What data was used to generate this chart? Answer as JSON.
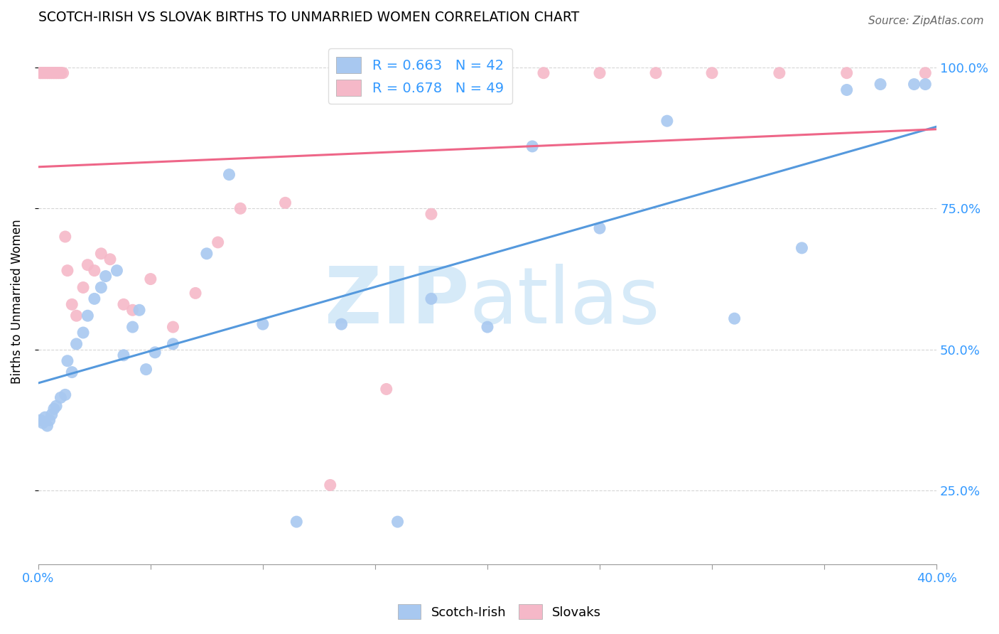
{
  "title": "SCOTCH-IRISH VS SLOVAK BIRTHS TO UNMARRIED WOMEN CORRELATION CHART",
  "source": "Source: ZipAtlas.com",
  "ylabel": "Births to Unmarried Women",
  "legend_blue": "R = 0.663   N = 42",
  "legend_pink": "R = 0.678   N = 49",
  "scotch_irish_color": "#a8c8f0",
  "slovak_color": "#f5b8c8",
  "scotch_irish_line_color": "#5599dd",
  "slovak_line_color": "#ee6688",
  "scotch_irish_x": [
    0.001,
    0.002,
    0.003,
    0.004,
    0.005,
    0.006,
    0.007,
    0.008,
    0.01,
    0.012,
    0.013,
    0.015,
    0.017,
    0.02,
    0.022,
    0.025,
    0.028,
    0.03,
    0.035,
    0.038,
    0.042,
    0.045,
    0.048,
    0.052,
    0.06,
    0.075,
    0.085,
    0.1,
    0.115,
    0.135,
    0.16,
    0.175,
    0.2,
    0.22,
    0.25,
    0.28,
    0.31,
    0.34,
    0.36,
    0.375,
    0.39,
    0.395
  ],
  "scotch_irish_y": [
    0.375,
    0.37,
    0.38,
    0.365,
    0.375,
    0.385,
    0.395,
    0.4,
    0.415,
    0.42,
    0.48,
    0.46,
    0.51,
    0.53,
    0.56,
    0.59,
    0.61,
    0.63,
    0.64,
    0.49,
    0.54,
    0.57,
    0.465,
    0.495,
    0.51,
    0.67,
    0.81,
    0.545,
    0.195,
    0.545,
    0.195,
    0.59,
    0.54,
    0.86,
    0.715,
    0.905,
    0.555,
    0.68,
    0.96,
    0.97,
    0.97,
    0.97
  ],
  "slovak_x": [
    0.001,
    0.001,
    0.002,
    0.002,
    0.003,
    0.003,
    0.004,
    0.004,
    0.005,
    0.005,
    0.006,
    0.006,
    0.007,
    0.007,
    0.008,
    0.008,
    0.009,
    0.009,
    0.01,
    0.01,
    0.011,
    0.012,
    0.013,
    0.015,
    0.017,
    0.02,
    0.022,
    0.025,
    0.028,
    0.032,
    0.038,
    0.042,
    0.05,
    0.06,
    0.07,
    0.08,
    0.09,
    0.11,
    0.13,
    0.155,
    0.175,
    0.2,
    0.225,
    0.25,
    0.275,
    0.3,
    0.33,
    0.36,
    0.395
  ],
  "slovak_y": [
    0.99,
    0.99,
    0.99,
    0.99,
    0.99,
    0.99,
    0.99,
    0.99,
    0.99,
    0.99,
    0.99,
    0.99,
    0.99,
    0.99,
    0.99,
    0.99,
    0.99,
    0.99,
    0.99,
    0.99,
    0.99,
    0.7,
    0.64,
    0.58,
    0.56,
    0.61,
    0.65,
    0.64,
    0.67,
    0.66,
    0.58,
    0.57,
    0.625,
    0.54,
    0.6,
    0.69,
    0.75,
    0.76,
    0.26,
    0.43,
    0.74,
    0.99,
    0.99,
    0.99,
    0.99,
    0.99,
    0.99,
    0.99,
    0.99
  ],
  "xlim": [
    0.0,
    0.4
  ],
  "ylim": [
    0.12,
    1.05
  ],
  "ytick_vals": [
    0.25,
    0.5,
    0.75,
    1.0
  ],
  "ytick_labels": [
    "25.0%",
    "50.0%",
    "75.0%",
    "100.0%"
  ],
  "xtick_vals": [
    0.0,
    0.05,
    0.1,
    0.15,
    0.2,
    0.25,
    0.3,
    0.35,
    0.4
  ],
  "figsize": [
    14.06,
    8.92
  ],
  "dpi": 100
}
